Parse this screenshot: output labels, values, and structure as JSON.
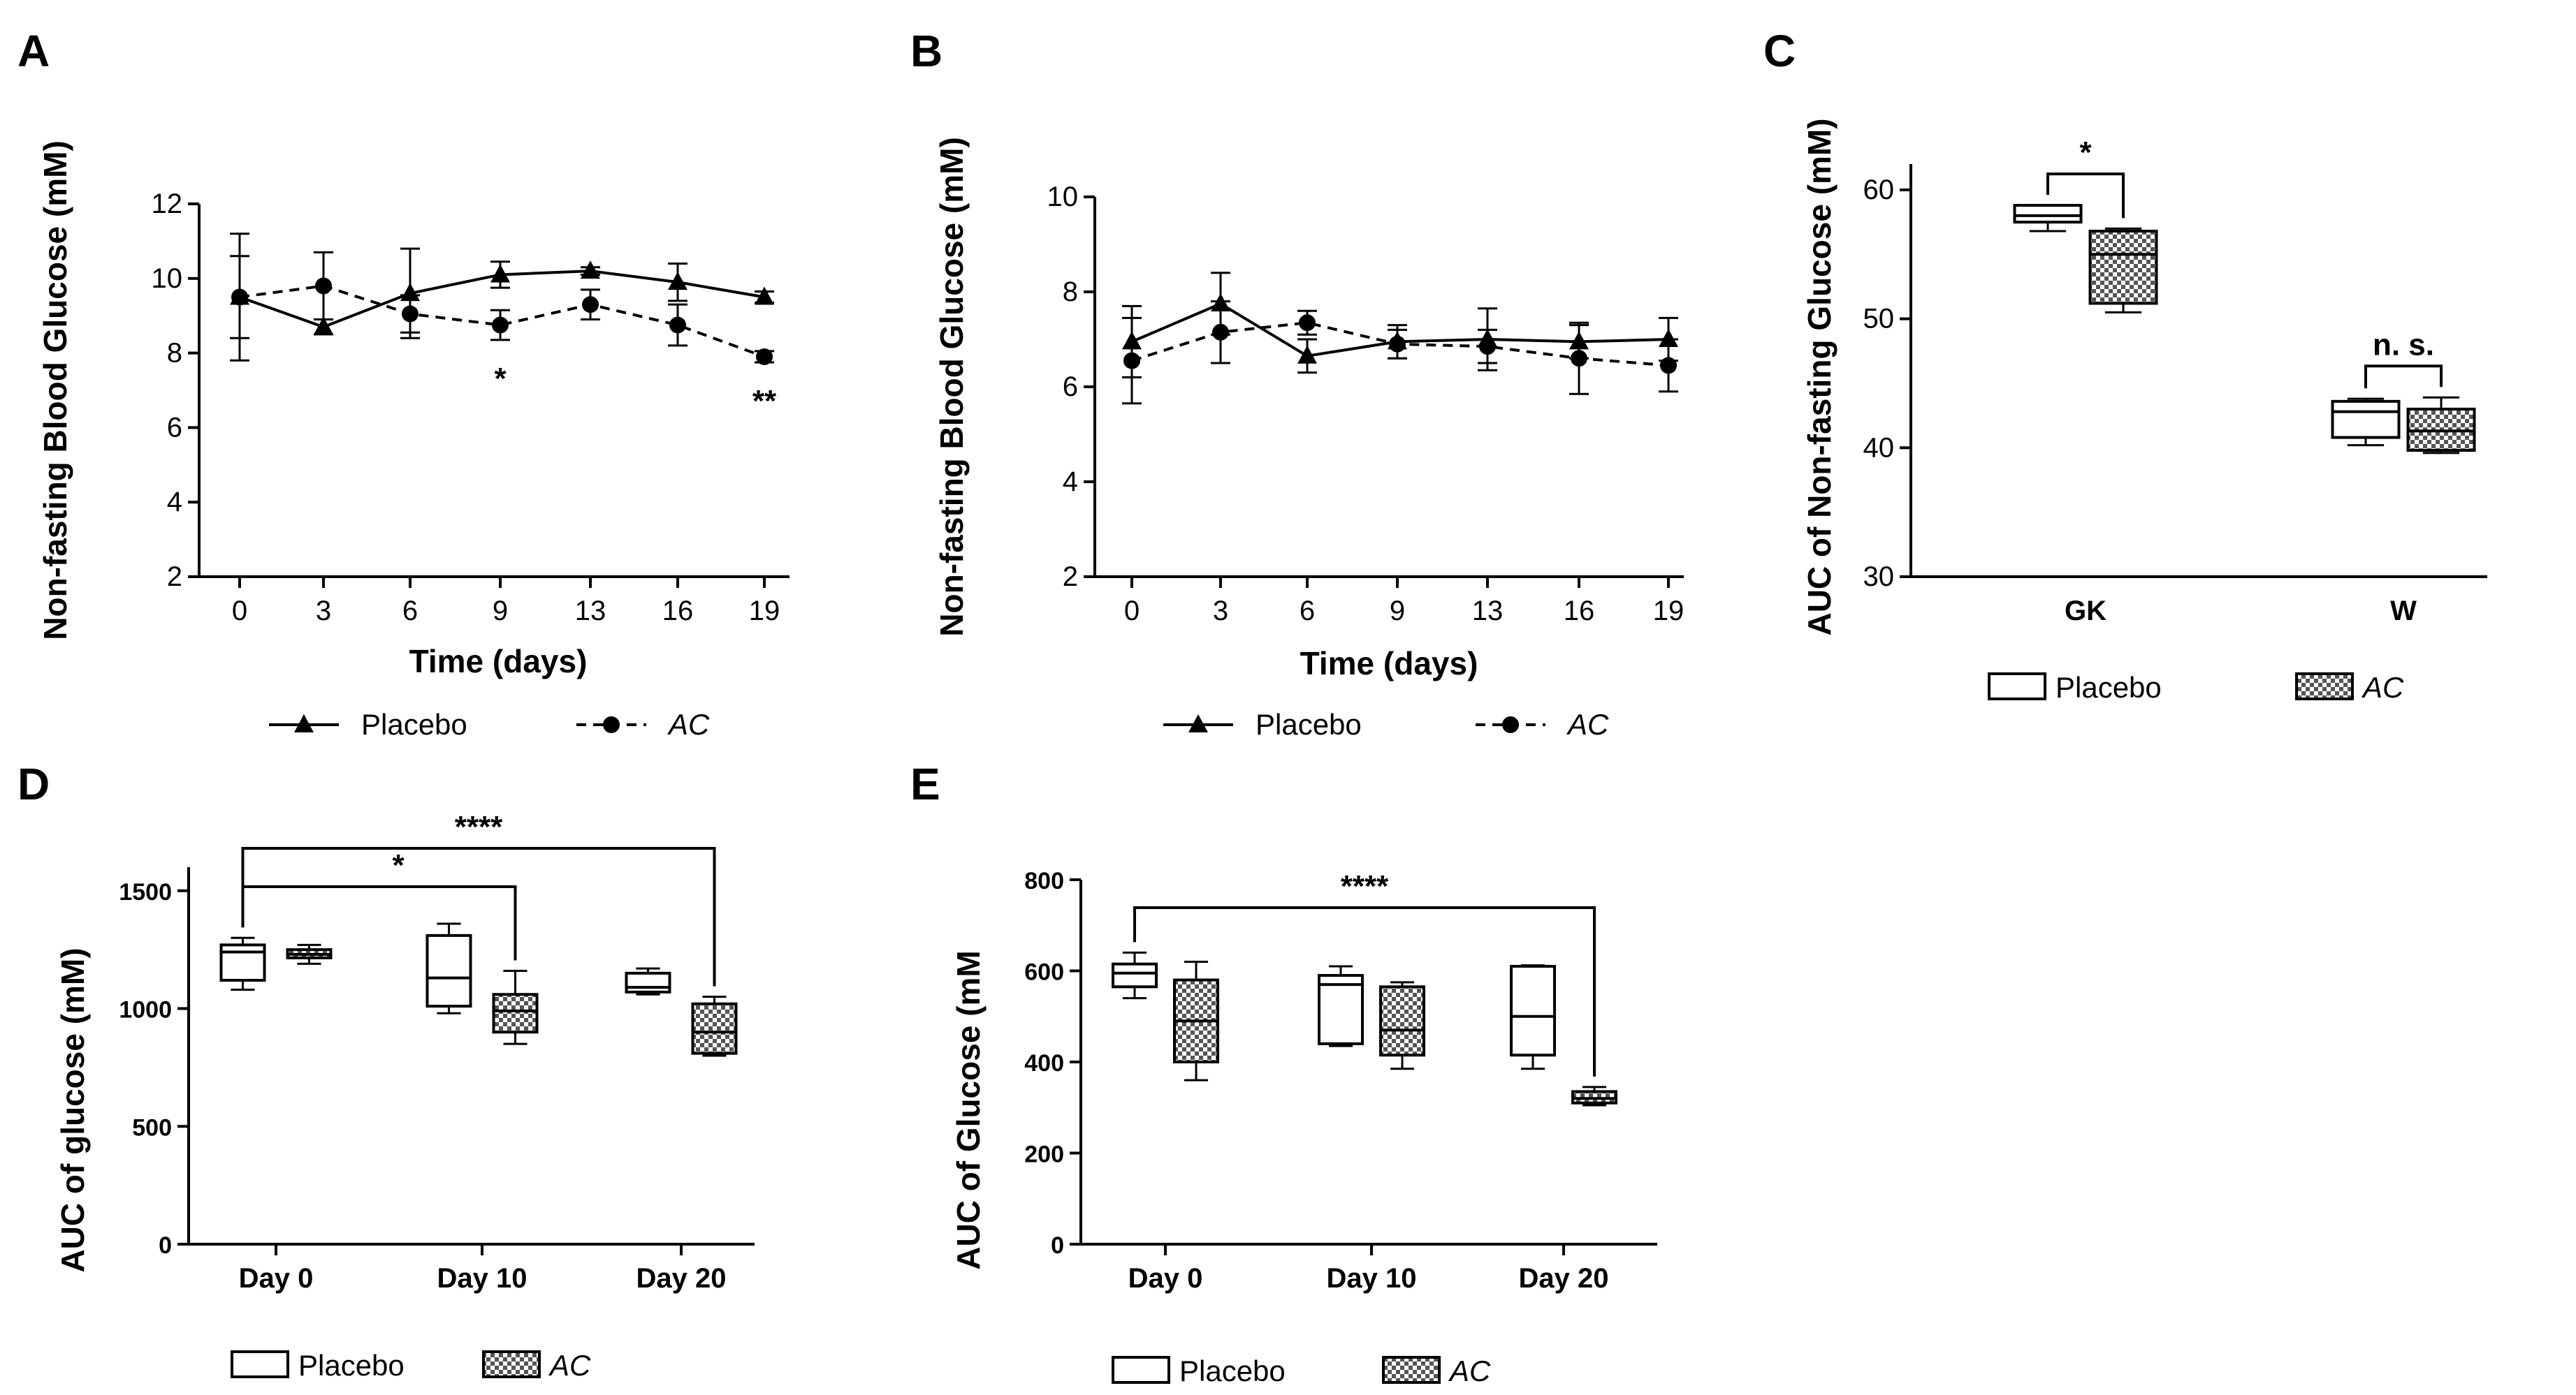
{
  "chart_data": [
    {
      "panel": "A",
      "type": "line",
      "x": [
        0,
        3,
        6,
        9,
        13,
        16,
        19
      ],
      "xlabel": "Time (days)",
      "ylabel": "Non-fasting Blood Glucose (mM)",
      "ylim": [
        2,
        12
      ],
      "yticks": [
        2,
        4,
        6,
        8,
        10,
        12
      ],
      "series": [
        {
          "name": "Placebo",
          "marker": "triangle",
          "dash": false,
          "values": [
            9.5,
            8.7,
            9.6,
            10.1,
            10.2,
            9.9,
            9.5
          ],
          "err": [
            1.1,
            0.2,
            1.2,
            0.35,
            0.1,
            0.5,
            0.15
          ]
        },
        {
          "name": "AC",
          "marker": "circle",
          "dash": true,
          "values": [
            9.5,
            9.8,
            9.05,
            8.75,
            9.3,
            8.75,
            7.9
          ],
          "err": [
            1.7,
            0.9,
            0.5,
            0.4,
            0.4,
            0.55,
            0.15
          ]
        }
      ],
      "annotations": [
        {
          "x": 9,
          "text": "*"
        },
        {
          "x": 19,
          "text": "**"
        }
      ],
      "legend_position": "bottom"
    },
    {
      "panel": "B",
      "type": "line",
      "x": [
        0,
        3,
        6,
        9,
        13,
        16,
        19
      ],
      "xlabel": "Time (days)",
      "ylabel": "Non-fasting Blood Glucose (mM)",
      "ylim": [
        2,
        10
      ],
      "yticks": [
        2,
        4,
        6,
        8,
        10
      ],
      "series": [
        {
          "name": "Placebo",
          "marker": "triangle",
          "dash": false,
          "values": [
            6.95,
            7.75,
            6.65,
            6.95,
            7.0,
            6.95,
            7.0
          ],
          "err": [
            0.75,
            0.65,
            0.35,
            0.35,
            0.65,
            0.35,
            0.45
          ]
        },
        {
          "name": "AC",
          "marker": "circle",
          "dash": true,
          "values": [
            6.55,
            7.15,
            7.35,
            6.9,
            6.85,
            6.6,
            6.45
          ],
          "err": [
            0.9,
            0.65,
            0.25,
            0.3,
            0.35,
            0.75,
            0.55
          ]
        }
      ],
      "legend_position": "bottom"
    },
    {
      "panel": "C",
      "type": "box",
      "categories": [
        "GK",
        "W"
      ],
      "ylabel": "AUC of Non-fasting Glucose (mM)",
      "ylim": [
        30,
        62
      ],
      "yticks": [
        30,
        40,
        50,
        60
      ],
      "series": [
        {
          "name": "Placebo",
          "fill": "white",
          "boxes": [
            {
              "min": 56.8,
              "q1": 57.5,
              "median": 58.0,
              "q3": 58.8,
              "max": 58.8
            },
            {
              "min": 40.2,
              "q1": 40.8,
              "median": 42.8,
              "q3": 43.6,
              "max": 43.8
            }
          ]
        },
        {
          "name": "AC",
          "fill": "checker",
          "boxes": [
            {
              "min": 50.5,
              "q1": 51.2,
              "median": 55.0,
              "q3": 56.8,
              "max": 57.0
            },
            {
              "min": 39.6,
              "q1": 39.8,
              "median": 41.3,
              "q3": 43.0,
              "max": 43.9
            }
          ]
        }
      ],
      "brackets": [
        {
          "from": "GK-Placebo",
          "to": "GK-AC",
          "text": "*"
        },
        {
          "from": "W-Placebo",
          "to": "W-AC",
          "text": "n. s."
        }
      ],
      "legend_position": "bottom"
    },
    {
      "panel": "D",
      "type": "box",
      "categories": [
        "Day 0",
        "Day 10",
        "Day 20"
      ],
      "ylabel": "AUC of glucose (mM)",
      "ylim": [
        0,
        1600
      ],
      "yticks": [
        0,
        500,
        1000,
        1500
      ],
      "series": [
        {
          "name": "Placebo",
          "fill": "white",
          "boxes": [
            {
              "min": 1080,
              "q1": 1120,
              "median": 1240,
              "q3": 1270,
              "max": 1300
            },
            {
              "min": 980,
              "q1": 1010,
              "median": 1130,
              "q3": 1310,
              "max": 1360
            },
            {
              "min": 1060,
              "q1": 1070,
              "median": 1090,
              "q3": 1150,
              "max": 1170
            }
          ]
        },
        {
          "name": "AC",
          "fill": "checker",
          "boxes": [
            {
              "min": 1190,
              "q1": 1215,
              "median": 1230,
              "q3": 1250,
              "max": 1270
            },
            {
              "min": 850,
              "q1": 900,
              "median": 990,
              "q3": 1060,
              "max": 1160
            },
            {
              "min": 800,
              "q1": 810,
              "median": 900,
              "q3": 1020,
              "max": 1050
            }
          ]
        }
      ],
      "brackets": [
        {
          "from": "Day 0-Placebo",
          "to": "Day 10-AC",
          "text": "*"
        },
        {
          "from": "Day 0-Placebo",
          "to": "Day 20-AC",
          "text": "****"
        }
      ],
      "legend_position": "bottom"
    },
    {
      "panel": "E",
      "type": "box",
      "categories": [
        "Day 0",
        "Day 10",
        "Day 20"
      ],
      "ylabel": "AUC of Glucose (mM",
      "ylim": [
        0,
        800
      ],
      "yticks": [
        0,
        200,
        400,
        600,
        800
      ],
      "series": [
        {
          "name": "Placebo",
          "fill": "white",
          "boxes": [
            {
              "min": 540,
              "q1": 565,
              "median": 595,
              "q3": 615,
              "max": 640
            },
            {
              "min": 435,
              "q1": 440,
              "median": 570,
              "q3": 590,
              "max": 610
            },
            {
              "min": 385,
              "q1": 415,
              "median": 500,
              "q3": 610,
              "max": 612
            }
          ]
        },
        {
          "name": "AC",
          "fill": "checker",
          "boxes": [
            {
              "min": 360,
              "q1": 400,
              "median": 490,
              "q3": 580,
              "max": 620
            },
            {
              "min": 385,
              "q1": 415,
              "median": 470,
              "q3": 565,
              "max": 575
            },
            {
              "min": 305,
              "q1": 310,
              "median": 320,
              "q3": 335,
              "max": 345
            }
          ]
        }
      ],
      "brackets": [
        {
          "from": "Day 0-Placebo",
          "to": "Day 20-AC",
          "text": "****"
        }
      ],
      "legend_position": "bottom"
    }
  ]
}
